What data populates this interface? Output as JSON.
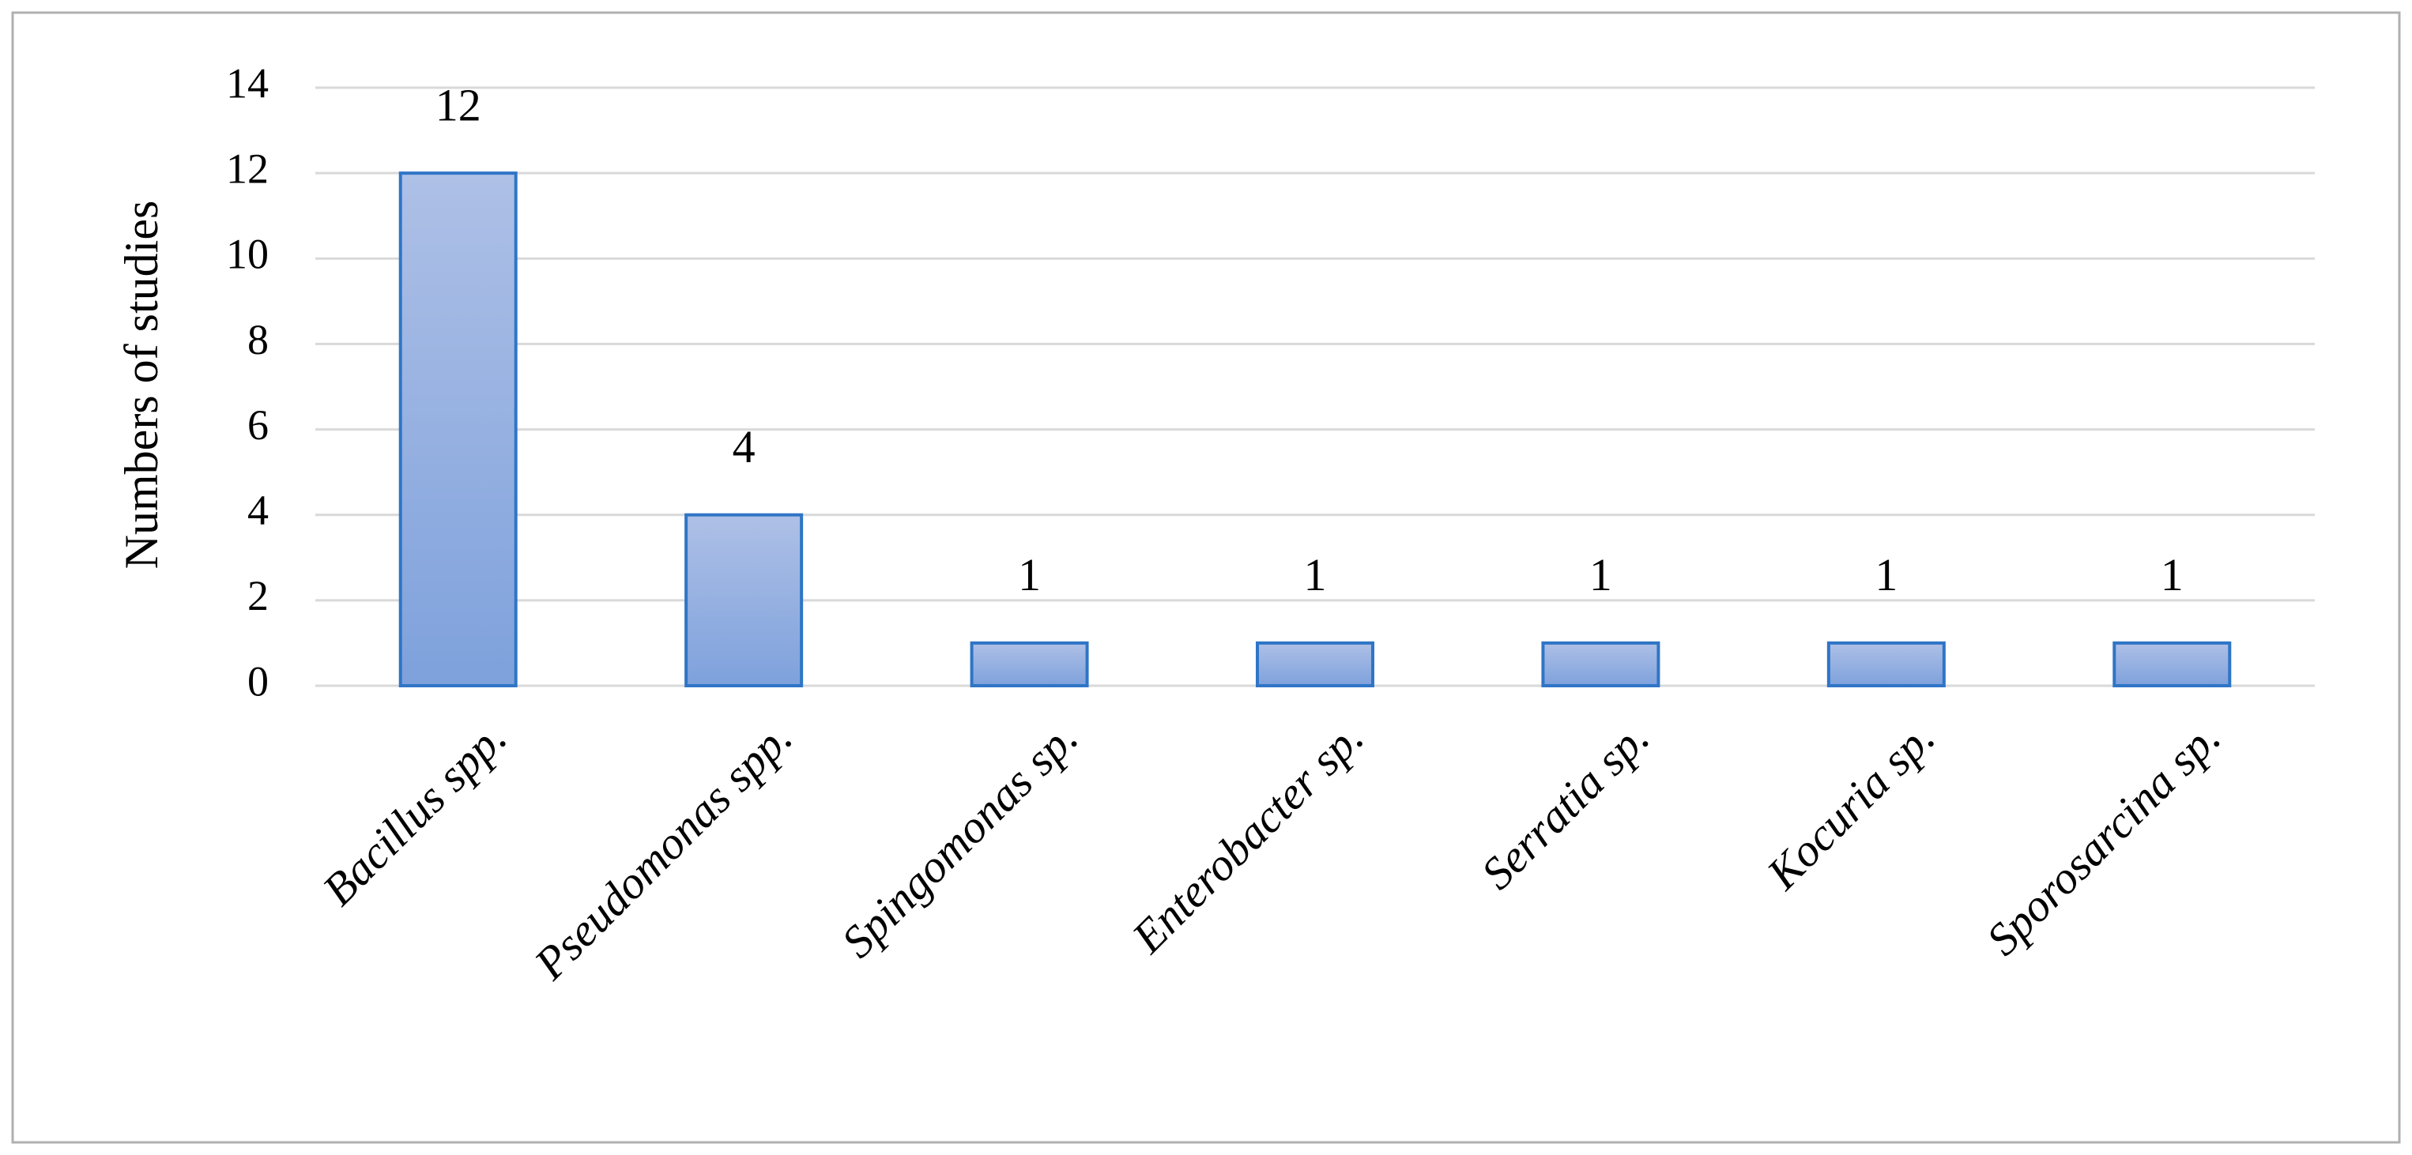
{
  "chart_data": {
    "type": "bar",
    "y_label": "Numbers of studies",
    "categories": [
      "Bacillus spp.",
      "Pseudomonas spp.",
      "Spingomonas sp.",
      "Enterobacter sp.",
      "Serratia sp.",
      "Kocuria sp.",
      "Sporosarcina sp."
    ],
    "values": [
      12,
      4,
      1,
      1,
      1,
      1,
      1
    ],
    "color": "#8eabe0",
    "ylim": [
      0,
      14
    ],
    "yticks": [
      0,
      2,
      4,
      6,
      8,
      10,
      12,
      14
    ],
    "grid": true
  }
}
